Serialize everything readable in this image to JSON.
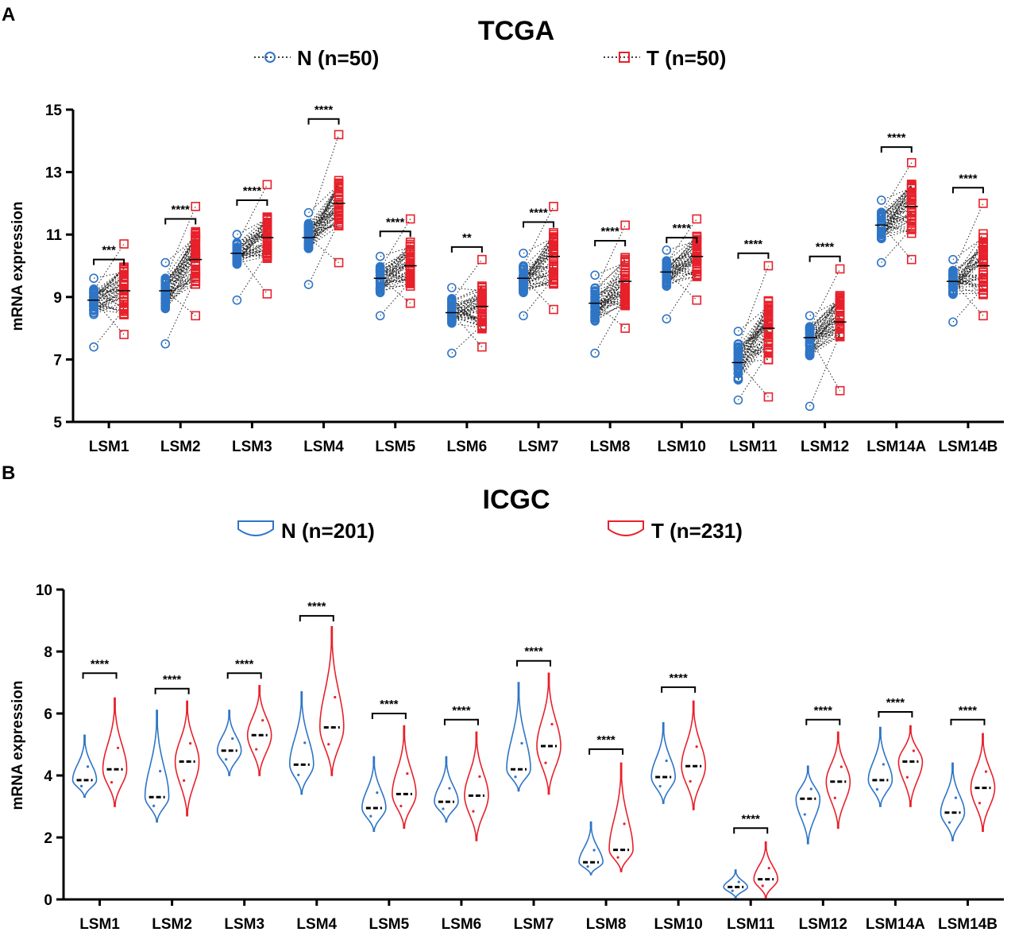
{
  "panels": [
    {
      "letter": "A"
    },
    {
      "letter": "B"
    }
  ],
  "chart_data": [
    {
      "type": "scatter",
      "subtype": "paired-before-after",
      "title": "TCGA",
      "ylabel": "mRNA expression",
      "xlabel": "",
      "ylim": [
        5,
        15
      ],
      "yticks": [
        5,
        7,
        9,
        11,
        13,
        15
      ],
      "legend": {
        "position": "top",
        "entries": [
          {
            "label": "N (n=50)",
            "color": "#2e75c6",
            "marker": "circle"
          },
          {
            "label": "T (n=50)",
            "color": "#e8202a",
            "marker": "square"
          }
        ]
      },
      "categories": [
        "LSM1",
        "LSM2",
        "LSM3",
        "LSM4",
        "LSM5",
        "LSM6",
        "LSM7",
        "LSM8",
        "LSM10",
        "LSM11",
        "LSM12",
        "LSM14A",
        "LSM14B"
      ],
      "series": [
        {
          "name": "N",
          "min": [
            7.4,
            7.5,
            8.9,
            9.4,
            8.4,
            7.2,
            8.4,
            7.2,
            8.3,
            5.7,
            5.5,
            10.1,
            8.2
          ],
          "q1": [
            8.5,
            8.7,
            10.1,
            10.6,
            9.2,
            8.2,
            9.2,
            8.3,
            9.4,
            6.3,
            7.2,
            10.9,
            9.1
          ],
          "median": [
            8.9,
            9.2,
            10.4,
            10.9,
            9.6,
            8.5,
            9.6,
            8.8,
            9.8,
            6.9,
            7.7,
            11.3,
            9.5
          ],
          "q3": [
            9.2,
            9.6,
            10.7,
            11.3,
            9.9,
            8.9,
            10.0,
            9.2,
            10.1,
            7.4,
            8.0,
            11.7,
            9.8
          ],
          "max": [
            9.6,
            10.1,
            11.0,
            11.7,
            10.3,
            9.3,
            10.4,
            9.7,
            10.5,
            7.9,
            8.4,
            12.1,
            10.2
          ]
        },
        {
          "name": "T",
          "min": [
            7.8,
            8.4,
            9.1,
            10.1,
            8.8,
            7.4,
            8.6,
            8.0,
            8.9,
            5.8,
            6.0,
            10.2,
            8.4
          ],
          "q1": [
            8.6,
            9.6,
            10.4,
            11.4,
            9.5,
            8.1,
            9.6,
            8.9,
            9.8,
            7.2,
            7.8,
            11.2,
            9.3
          ],
          "median": [
            9.2,
            10.2,
            10.9,
            12.0,
            10.0,
            8.7,
            10.3,
            9.5,
            10.3,
            8.0,
            8.2,
            11.9,
            10.0
          ],
          "q3": [
            9.8,
            10.9,
            11.5,
            12.6,
            10.6,
            9.2,
            10.9,
            10.1,
            10.8,
            8.7,
            8.9,
            12.5,
            10.9
          ],
          "max": [
            10.7,
            11.9,
            12.6,
            14.2,
            11.5,
            10.2,
            11.9,
            11.3,
            11.5,
            10.0,
            9.9,
            13.3,
            12.0
          ]
        }
      ],
      "significance": [
        {
          "label": "***",
          "y": 10.2
        },
        {
          "label": "****",
          "y": 11.5
        },
        {
          "label": "****",
          "y": 12.1
        },
        {
          "label": "****",
          "y": 14.7
        },
        {
          "label": "****",
          "y": 11.1
        },
        {
          "label": "**",
          "y": 10.6
        },
        {
          "label": "****",
          "y": 11.4
        },
        {
          "label": "****",
          "y": 10.8
        },
        {
          "label": "****",
          "y": 10.9
        },
        {
          "label": "****",
          "y": 10.4
        },
        {
          "label": "****",
          "y": 10.3
        },
        {
          "label": "****",
          "y": 13.8
        },
        {
          "label": "****",
          "y": 12.5
        }
      ]
    },
    {
      "type": "violin",
      "title": "ICGC",
      "ylabel": "mRNA expression",
      "xlabel": "",
      "ylim": [
        0,
        10
      ],
      "yticks": [
        0,
        2,
        4,
        6,
        8,
        10
      ],
      "legend": {
        "position": "top",
        "entries": [
          {
            "label": "N (n=201)",
            "color": "#2e75c6"
          },
          {
            "label": "T (n=231)",
            "color": "#e8202a"
          }
        ]
      },
      "categories": [
        "LSM1",
        "LSM2",
        "LSM3",
        "LSM4",
        "LSM5",
        "LSM6",
        "LSM7",
        "LSM8",
        "LSM10",
        "LSM11",
        "LSM12",
        "LSM14A",
        "LSM14B"
      ],
      "series": [
        {
          "name": "N",
          "min": [
            3.3,
            2.5,
            4.0,
            3.4,
            2.2,
            2.5,
            3.5,
            0.8,
            3.1,
            0.05,
            1.8,
            3.0,
            1.9
          ],
          "median": [
            3.85,
            3.3,
            4.8,
            4.35,
            2.95,
            3.15,
            4.2,
            1.2,
            3.95,
            0.4,
            3.25,
            3.85,
            2.8
          ],
          "max": [
            5.3,
            6.1,
            6.1,
            6.7,
            4.6,
            4.6,
            7.0,
            2.5,
            5.7,
            0.95,
            4.3,
            5.55,
            4.4
          ]
        },
        {
          "name": "T",
          "min": [
            3.0,
            2.7,
            4.0,
            4.0,
            2.3,
            1.9,
            3.4,
            0.9,
            2.9,
            0.05,
            2.3,
            3.0,
            2.2
          ],
          "median": [
            4.2,
            4.45,
            5.3,
            5.55,
            3.4,
            3.35,
            4.95,
            1.6,
            4.3,
            0.65,
            3.8,
            4.45,
            3.6
          ],
          "max": [
            6.5,
            6.4,
            6.9,
            8.8,
            5.6,
            5.4,
            7.3,
            4.4,
            6.4,
            1.85,
            5.4,
            5.6,
            5.35
          ]
        }
      ],
      "significance": [
        {
          "label": "****",
          "y": 7.3
        },
        {
          "label": "****",
          "y": 6.8
        },
        {
          "label": "****",
          "y": 7.3
        },
        {
          "label": "****",
          "y": 9.15
        },
        {
          "label": "****",
          "y": 6.0
        },
        {
          "label": "****",
          "y": 5.8
        },
        {
          "label": "****",
          "y": 7.7
        },
        {
          "label": "****",
          "y": 4.85
        },
        {
          "label": "****",
          "y": 6.85
        },
        {
          "label": "****",
          "y": 2.3
        },
        {
          "label": "****",
          "y": 5.8
        },
        {
          "label": "****",
          "y": 6.05
        },
        {
          "label": "****",
          "y": 5.8
        }
      ]
    }
  ]
}
